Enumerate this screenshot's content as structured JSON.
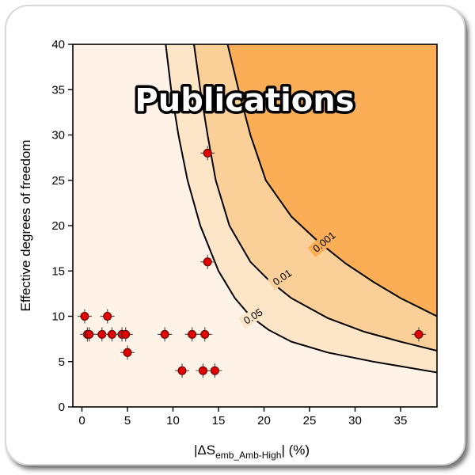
{
  "badge": {
    "text": "Publications"
  },
  "chart_data": {
    "type": "scatter",
    "ylabel": "Effective degrees of freedom",
    "xlabel_parts": {
      "main": "|ΔS",
      "subscript": "emb_Amb-High",
      "suffix": "| (%)"
    },
    "xlim": [
      -1,
      39
    ],
    "ylim": [
      0,
      40
    ],
    "xticks": [
      0,
      5,
      10,
      15,
      20,
      25,
      30,
      35
    ],
    "yticks": [
      0,
      5,
      10,
      15,
      20,
      25,
      30,
      35,
      40
    ],
    "grid": false,
    "points": [
      {
        "x": 0.3,
        "y": 10
      },
      {
        "x": 0.6,
        "y": 8
      },
      {
        "x": 0.8,
        "y": 8
      },
      {
        "x": 2.2,
        "y": 8
      },
      {
        "x": 2.8,
        "y": 10
      },
      {
        "x": 3.3,
        "y": 8
      },
      {
        "x": 4.4,
        "y": 8
      },
      {
        "x": 4.8,
        "y": 8
      },
      {
        "x": 5.0,
        "y": 6
      },
      {
        "x": 9.1,
        "y": 8
      },
      {
        "x": 11.0,
        "y": 4
      },
      {
        "x": 12.1,
        "y": 8
      },
      {
        "x": 13.3,
        "y": 4
      },
      {
        "x": 13.5,
        "y": 8
      },
      {
        "x": 14.6,
        "y": 4
      },
      {
        "x": 13.8,
        "y": 16
      },
      {
        "x": 13.8,
        "y": 28
      },
      {
        "x": 37.0,
        "y": 8
      }
    ],
    "contours": [
      {
        "label": "0.05",
        "fill": "#fde5c8",
        "label_at": {
          "x": 18.8,
          "y": 10
        },
        "label_angle": -32,
        "points": [
          [
            9.2,
            40
          ],
          [
            9.8,
            35
          ],
          [
            10.6,
            30
          ],
          [
            11.6,
            25
          ],
          [
            13.0,
            20
          ],
          [
            15.0,
            15
          ],
          [
            16.8,
            12
          ],
          [
            18.5,
            10
          ],
          [
            20.5,
            8.5
          ],
          [
            23,
            7.2
          ],
          [
            27,
            6.0
          ],
          [
            32,
            5.0
          ],
          [
            39,
            3.8
          ]
        ]
      },
      {
        "label": "0.01",
        "fill": "#fbcf98",
        "label_at": {
          "x": 22.0,
          "y": 14.3
        },
        "label_angle": -34,
        "points": [
          [
            12.3,
            40
          ],
          [
            13.0,
            35
          ],
          [
            13.8,
            30
          ],
          [
            14.7,
            25
          ],
          [
            16.2,
            20
          ],
          [
            18.5,
            16
          ],
          [
            20.5,
            14
          ],
          [
            23,
            12
          ],
          [
            27,
            9.8
          ],
          [
            31,
            8.3
          ],
          [
            35,
            7.2
          ],
          [
            39,
            6.2
          ]
        ]
      },
      {
        "label": "0.001",
        "fill": "#fbae55",
        "label_at": {
          "x": 26.6,
          "y": 18.2
        },
        "label_angle": -40,
        "points": [
          [
            16.0,
            40
          ],
          [
            17.2,
            35
          ],
          [
            18.5,
            30
          ],
          [
            20.2,
            25
          ],
          [
            23.0,
            21
          ],
          [
            26,
            18.2
          ],
          [
            29,
            15.8
          ],
          [
            32,
            13.8
          ],
          [
            35,
            12.0
          ],
          [
            39,
            10.0
          ]
        ]
      }
    ],
    "background_fill": "#fff2e6"
  }
}
